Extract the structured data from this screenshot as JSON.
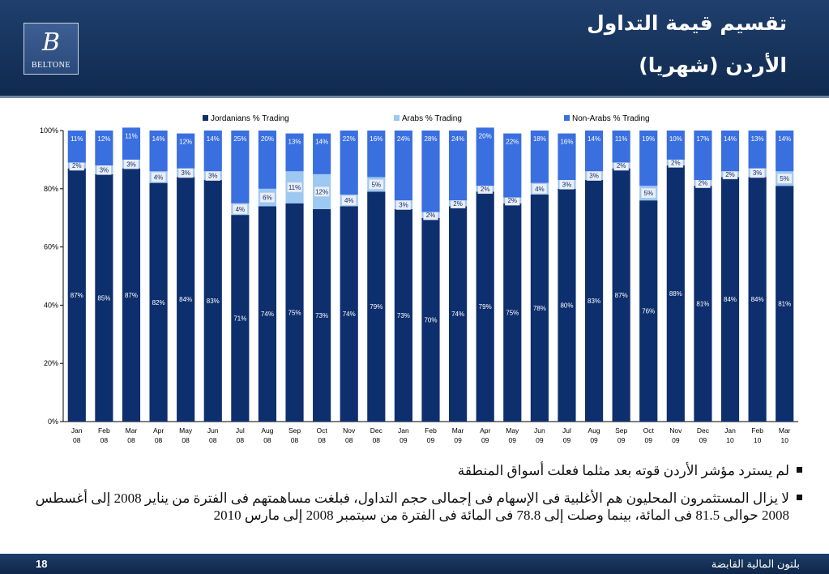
{
  "header": {
    "title_line1": "تقسيم قيمة التداول",
    "title_line2": "الأردن (شهريا)",
    "logo_mark": "B",
    "logo_text": "BELTONE"
  },
  "chart_data": {
    "type": "bar",
    "stacked": true,
    "percent_stacked": true,
    "categories": [
      "Jan 08",
      "Feb 08",
      "Mar 08",
      "Apr 08",
      "May 08",
      "Jun 08",
      "Jul 08",
      "Aug 08",
      "Sep 08",
      "Oct 08",
      "Nov 08",
      "Dec 08",
      "Jan 09",
      "Feb 09",
      "Mar 09",
      "Apr 09",
      "May 09",
      "Jun 09",
      "Jul 09",
      "Aug 09",
      "Sep 09",
      "Oct 09",
      "Nov 09",
      "Dec 09",
      "Jan 10",
      "Feb 10",
      "Mar 10"
    ],
    "category_lines": [
      [
        "Jan",
        "08"
      ],
      [
        "Feb",
        "08"
      ],
      [
        "Mar",
        "08"
      ],
      [
        "Apr",
        "08"
      ],
      [
        "May",
        "08"
      ],
      [
        "Jun",
        "08"
      ],
      [
        "Jul",
        "08"
      ],
      [
        "Aug",
        "08"
      ],
      [
        "Sep",
        "08"
      ],
      [
        "Oct",
        "08"
      ],
      [
        "Nov",
        "08"
      ],
      [
        "Dec",
        "08"
      ],
      [
        "Jan",
        "09"
      ],
      [
        "Feb",
        "09"
      ],
      [
        "Mar",
        "09"
      ],
      [
        "Apr",
        "09"
      ],
      [
        "May",
        "09"
      ],
      [
        "Jun",
        "09"
      ],
      [
        "Jul",
        "09"
      ],
      [
        "Aug",
        "09"
      ],
      [
        "Sep",
        "09"
      ],
      [
        "Oct",
        "09"
      ],
      [
        "Nov",
        "09"
      ],
      [
        "Dec",
        "09"
      ],
      [
        "Jan",
        "10"
      ],
      [
        "Feb",
        "10"
      ],
      [
        "Mar",
        "10"
      ]
    ],
    "series": [
      {
        "name": "Jordanians % Trading",
        "color": "#0e2f6e",
        "values": [
          87,
          85,
          87,
          82,
          84,
          83,
          71,
          74,
          75,
          73,
          74,
          79,
          73,
          70,
          74,
          79,
          75,
          78,
          80,
          83,
          87,
          76,
          88,
          81,
          84,
          84,
          81
        ]
      },
      {
        "name": "Arabs  % Trading",
        "color": "#9cc8f2",
        "values": [
          2,
          3,
          3,
          4,
          3,
          3,
          4,
          6,
          11,
          12,
          4,
          5,
          3,
          2,
          2,
          2,
          2,
          4,
          3,
          3,
          2,
          5,
          2,
          2,
          2,
          3,
          5
        ]
      },
      {
        "name": "Non-Arabs % Trading",
        "color": "#3a6fe0",
        "values": [
          11,
          12,
          11,
          14,
          12,
          14,
          25,
          20,
          13,
          14,
          22,
          16,
          24,
          28,
          24,
          20,
          22,
          18,
          16,
          14,
          11,
          19,
          10,
          17,
          14,
          13,
          14
        ]
      }
    ],
    "yticks": [
      "0%",
      "20%",
      "40%",
      "60%",
      "80%",
      "100%"
    ],
    "ylim": [
      0,
      100
    ],
    "legend_position": "top",
    "grid": false
  },
  "notes": [
    "لم يسترد مؤشر الأردن قوته بعد مثلما فعلت أسواق المنطقة",
    "لا يزال المستثمرون المحليون هم الأغلبية فى الإسهام فى إجمالى حجم التداول، فبلغت مساهمتهم فى الفترة من يناير 2008 إلى أغسطس 2008 حوالى 81.5 فى المائة، بينما وصلت إلى 78.8 فى المائة فى الفترة من سبتمبر 2008 إلى مارس 2010"
  ],
  "footer": {
    "page_number": "18",
    "company": "بلتون المالية القابضة"
  }
}
